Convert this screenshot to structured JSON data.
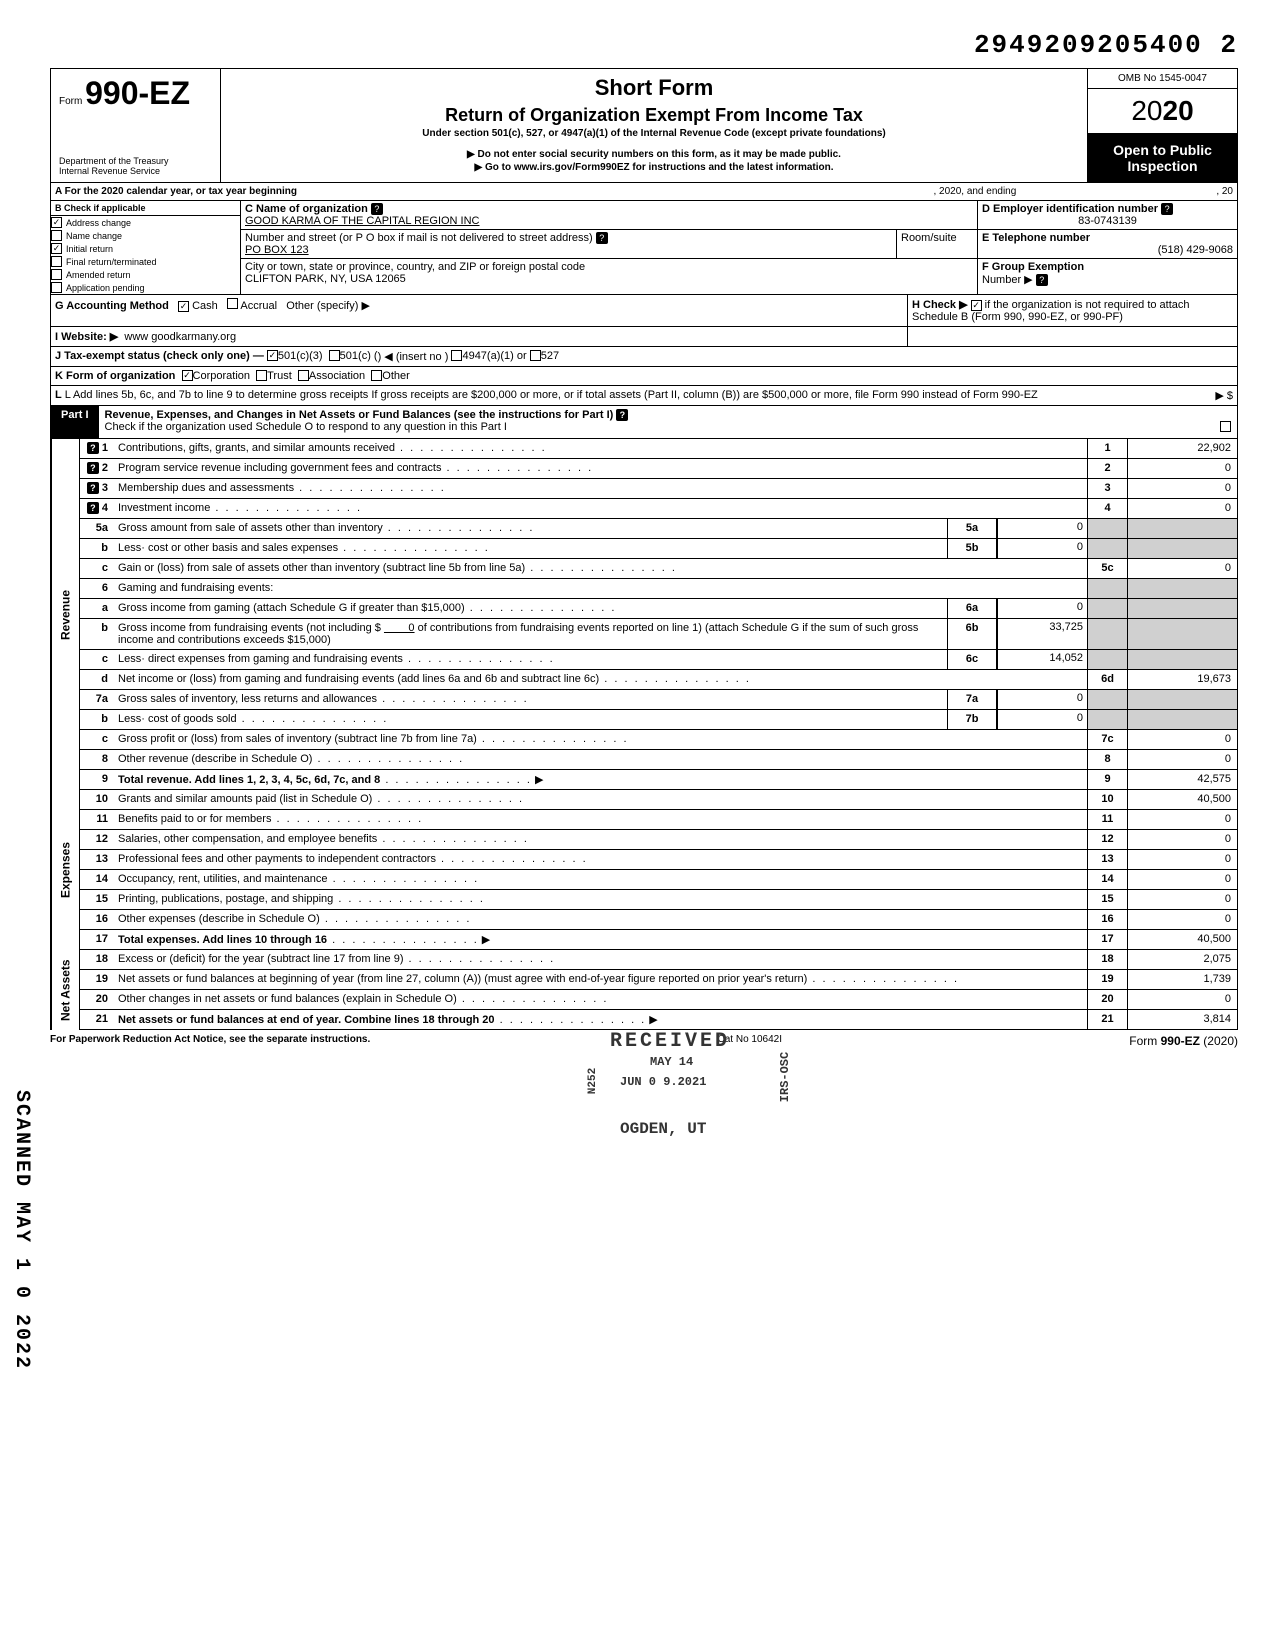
{
  "page_stamp": "2949209205400  2",
  "omb": "OMB No 1545-0047",
  "form_prefix": "Form",
  "form_number": "990-EZ",
  "short_form": "Short Form",
  "return_title": "Return of Organization Exempt From Income Tax",
  "under_section": "Under section 501(c), 527, or 4947(a)(1) of the Internal Revenue Code (except private foundations)",
  "ssn_note": "▶ Do not enter social security numbers on this form, as it may be made public.",
  "goto": "▶ Go to www.irs.gov/Form990EZ for instructions and the latest information.",
  "dept": "Department of the Treasury",
  "irs": "Internal Revenue Service",
  "year": "2020",
  "open_public": "Open to Public",
  "inspection": "Inspection",
  "line_A": "A For the 2020 calendar year, or tax year beginning",
  "line_A_mid": ", 2020, and ending",
  "line_A_end": ", 20",
  "B_label": "B Check if applicable",
  "B_items": [
    "Address change",
    "Name change",
    "Initial return",
    "Final return/terminated",
    "Amended return",
    "Application pending"
  ],
  "B_checked": [
    true,
    false,
    true,
    false,
    false,
    false
  ],
  "C_label": "C Name of organization",
  "C_value": "GOOD KARMA OF THE CAPITAL REGION INC",
  "street_label": "Number and street (or P O box if mail is not delivered to street address)",
  "room_label": "Room/suite",
  "street_value": "PO BOX 123",
  "city_label": "City or town, state or province, country, and ZIP or foreign postal code",
  "city_value": "CLIFTON PARK, NY, USA 12065",
  "D_label": "D Employer identification number",
  "D_value": "83-0743139",
  "E_label": "E Telephone number",
  "E_value": "(518) 429-9068",
  "F_label": "F Group Exemption",
  "F_sub": "Number ▶",
  "G_label": "G Accounting Method",
  "G_cash": "Cash",
  "G_accrual": "Accrual",
  "G_other": "Other (specify) ▶",
  "H_label": "H Check ▶",
  "H_txt": "if the organization is not required to attach Schedule B (Form 990, 990-EZ, or 990-PF)",
  "I_label": "I Website: ▶",
  "I_value": "www goodkarmany.org",
  "J_label": "J Tax-exempt status (check only one) —",
  "J_501c3": "501(c)(3)",
  "J_501c": "501(c) (",
  "J_insert": ") ◀ (insert no )",
  "J_4947": "4947(a)(1) or",
  "J_527": "527",
  "K_label": "K Form of organization",
  "K_corp": "Corporation",
  "K_trust": "Trust",
  "K_assoc": "Association",
  "K_other": "Other",
  "L_text": "L Add lines 5b, 6c, and 7b to line 9 to determine gross receipts If gross receipts are $200,000 or more, or if total assets (Part II, column (B)) are $500,000 or more, file Form 990 instead of Form 990-EZ",
  "L_arrow": "▶  $",
  "part1_label": "Part I",
  "part1_title": "Revenue, Expenses, and Changes in Net Assets or Fund Balances (see the instructions for Part I)",
  "part1_check": "Check if the organization used Schedule O to respond to any question in this Part I",
  "revenue_label": "Revenue",
  "expenses_label": "Expenses",
  "netassets_label": "Net Assets",
  "lines": {
    "1": {
      "n": "1",
      "t": "Contributions, gifts, grants, and similar amounts received",
      "box": "1",
      "amt": "22,902"
    },
    "2": {
      "n": "2",
      "t": "Program service revenue including government fees and contracts",
      "box": "2",
      "amt": "0"
    },
    "3": {
      "n": "3",
      "t": "Membership dues and assessments",
      "box": "3",
      "amt": "0"
    },
    "4": {
      "n": "4",
      "t": "Investment income",
      "box": "4",
      "amt": "0"
    },
    "5a": {
      "n": "5a",
      "t": "Gross amount from sale of assets other than inventory",
      "sub": "5a",
      "subamt": "0"
    },
    "5b": {
      "n": "b",
      "t": "Less· cost or other basis and sales expenses",
      "sub": "5b",
      "subamt": "0"
    },
    "5c": {
      "n": "c",
      "t": "Gain or (loss) from sale of assets other than inventory (subtract line 5b from line 5a)",
      "box": "5c",
      "amt": "0"
    },
    "6": {
      "n": "6",
      "t": "Gaming and fundraising events:"
    },
    "6a": {
      "n": "a",
      "t": "Gross income from gaming (attach Schedule G if greater than $15,000)",
      "sub": "6a",
      "subamt": "0"
    },
    "6b": {
      "n": "b",
      "t": "Gross income from fundraising events (not including $",
      "t2": "of contributions from fundraising events reported on line 1) (attach Schedule G if the sum of such gross income and contributions exceeds $15,000)",
      "mid": "0",
      "sub": "6b",
      "subamt": "33,725"
    },
    "6c": {
      "n": "c",
      "t": "Less· direct expenses from gaming and fundraising events",
      "sub": "6c",
      "subamt": "14,052"
    },
    "6d": {
      "n": "d",
      "t": "Net income or (loss) from gaming and fundraising events (add lines 6a and 6b and subtract line 6c)",
      "box": "6d",
      "amt": "19,673"
    },
    "7a": {
      "n": "7a",
      "t": "Gross sales of inventory, less returns and allowances",
      "sub": "7a",
      "subamt": "0"
    },
    "7b": {
      "n": "b",
      "t": "Less· cost of goods sold",
      "sub": "7b",
      "subamt": "0"
    },
    "7c": {
      "n": "c",
      "t": "Gross profit or (loss) from sales of inventory (subtract line 7b from line 7a)",
      "box": "7c",
      "amt": "0"
    },
    "8": {
      "n": "8",
      "t": "Other revenue (describe in Schedule O)",
      "box": "8",
      "amt": "0"
    },
    "9": {
      "n": "9",
      "t": "Total revenue. Add lines 1, 2, 3, 4, 5c, 6d, 7c, and 8",
      "box": "9",
      "amt": "42,575"
    },
    "10": {
      "n": "10",
      "t": "Grants and similar amounts paid (list in Schedule O)",
      "box": "10",
      "amt": "40,500"
    },
    "11": {
      "n": "11",
      "t": "Benefits paid to or for members",
      "box": "11",
      "amt": "0"
    },
    "12": {
      "n": "12",
      "t": "Salaries, other compensation, and employee benefits",
      "box": "12",
      "amt": "0"
    },
    "13": {
      "n": "13",
      "t": "Professional fees and other payments to independent contractors",
      "box": "13",
      "amt": "0"
    },
    "14": {
      "n": "14",
      "t": "Occupancy, rent, utilities, and maintenance",
      "box": "14",
      "amt": "0"
    },
    "15": {
      "n": "15",
      "t": "Printing, publications, postage, and shipping",
      "box": "15",
      "amt": "0"
    },
    "16": {
      "n": "16",
      "t": "Other expenses (describe in Schedule O)",
      "box": "16",
      "amt": "0"
    },
    "17": {
      "n": "17",
      "t": "Total expenses. Add lines 10 through 16",
      "box": "17",
      "amt": "40,500"
    },
    "18": {
      "n": "18",
      "t": "Excess or (deficit) for the year (subtract line 17 from line 9)",
      "box": "18",
      "amt": "2,075"
    },
    "19": {
      "n": "19",
      "t": "Net assets or fund balances at beginning of year (from line 27, column (A)) (must agree with end-of-year figure reported on prior year's return)",
      "box": "19",
      "amt": "1,739"
    },
    "20": {
      "n": "20",
      "t": "Other changes in net assets or fund balances (explain in Schedule O)",
      "box": "20",
      "amt": "0"
    },
    "21": {
      "n": "21",
      "t": "Net assets or fund balances at end of year. Combine lines 18 through 20",
      "box": "21",
      "amt": "3,814"
    }
  },
  "stamps": {
    "received": "RECEIVED",
    "ogden": "OGDEN, UT",
    "date1": "MAY 14",
    "date2": "JUN 0 9.2021",
    "osc": "IRS-OSC",
    "n252": "N252"
  },
  "scanned": "SCANNED MAY 1 0 2022",
  "footer_left": "For Paperwork Reduction Act Notice, see the separate instructions.",
  "footer_mid": "Cat No 10642I",
  "footer_right_form": "Form 990-EZ (2020)",
  "colors": {
    "black": "#000000",
    "white": "#ffffff",
    "gray": "#d0d0d0"
  }
}
